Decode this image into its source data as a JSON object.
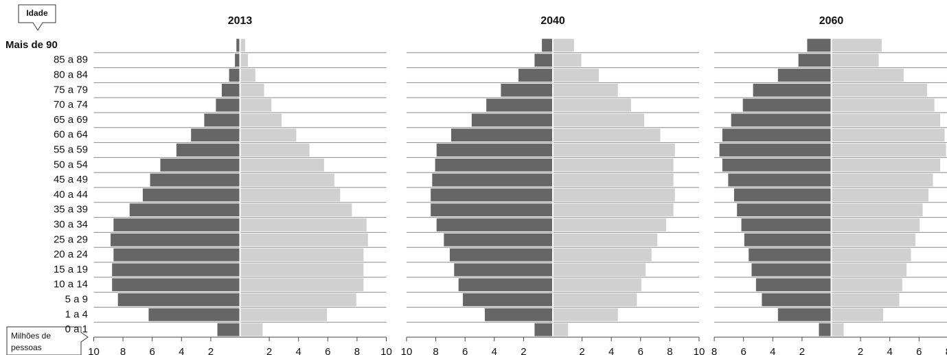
{
  "chart_data": [
    {
      "type": "pyramid",
      "title": "2013",
      "ylabel": "Idade",
      "xlabel": [
        "Milhões de",
        "pessoas"
      ],
      "categories": [
        "Mais de 90",
        "85 a 89",
        "80 a 84",
        "75 a 79",
        "70 a 74",
        "65 a 69",
        "60 a 64",
        "55 a 59",
        "50 a 54",
        "45 a 49",
        "40 a 44",
        "35 a 39",
        "30 a 34",
        "25 a 29",
        "20 a 24",
        "15 a 19",
        "10 a 14",
        "5 a 9",
        "1 a 4",
        "0 a 1"
      ],
      "series": [
        {
          "color": "#666666",
          "side": "left",
          "values": [
            0.2,
            0.3,
            0.7,
            1.2,
            1.6,
            2.4,
            3.3,
            4.3,
            5.4,
            6.1,
            6.6,
            7.5,
            8.6,
            8.8,
            8.6,
            8.7,
            8.7,
            8.3,
            6.2,
            1.5
          ]
        },
        {
          "color": "#d0d0d0",
          "side": "right",
          "values": [
            0.3,
            0.5,
            1.0,
            1.6,
            2.1,
            2.8,
            3.8,
            4.7,
            5.7,
            6.4,
            6.8,
            7.6,
            8.6,
            8.7,
            8.4,
            8.4,
            8.4,
            7.9,
            5.9,
            1.5
          ]
        }
      ],
      "xlim": [
        -10,
        10
      ],
      "xticks": [
        {
          "value": -10,
          "label": "10"
        },
        {
          "value": -8,
          "label": "8"
        },
        {
          "value": -6,
          "label": "6"
        },
        {
          "value": -4,
          "label": "4"
        },
        {
          "value": -2,
          "label": "2"
        },
        2,
        4,
        6,
        8,
        10
      ]
    },
    {
      "type": "pyramid",
      "title": "2040",
      "series": [
        {
          "color": "#666666",
          "side": "left",
          "values": [
            0.7,
            1.2,
            2.3,
            3.5,
            4.5,
            5.5,
            6.9,
            7.9,
            8.0,
            8.2,
            8.3,
            8.3,
            7.9,
            7.4,
            7.0,
            6.7,
            6.4,
            6.1,
            4.6,
            1.2
          ]
        },
        {
          "color": "#d0d0d0",
          "side": "right",
          "values": [
            1.4,
            1.9,
            3.1,
            4.4,
            5.3,
            6.2,
            7.3,
            8.3,
            8.2,
            8.2,
            8.3,
            8.2,
            7.7,
            7.1,
            6.7,
            6.3,
            6.0,
            5.7,
            4.4,
            1.0
          ]
        }
      ],
      "xlim": [
        -10,
        10
      ],
      "xticks": [
        {
          "value": -10,
          "label": "10"
        },
        {
          "value": -8,
          "label": "8"
        },
        {
          "value": -6,
          "label": "6"
        },
        {
          "value": -4,
          "label": "4"
        },
        {
          "value": -2,
          "label": "2"
        },
        2,
        4,
        6,
        8,
        10
      ]
    },
    {
      "type": "pyramid",
      "title": "2060",
      "series": [
        {
          "color": "#666666",
          "side": "left",
          "values": [
            1.6,
            2.2,
            3.6,
            5.3,
            6.0,
            6.8,
            7.4,
            7.6,
            7.4,
            7.0,
            6.6,
            6.4,
            6.1,
            5.9,
            5.6,
            5.4,
            5.1,
            4.7,
            3.6,
            0.8
          ]
        },
        {
          "color": "#d0d0d0",
          "side": "right",
          "values": [
            3.4,
            3.2,
            4.9,
            6.5,
            7.0,
            7.4,
            7.7,
            7.8,
            7.4,
            6.9,
            6.6,
            6.2,
            6.0,
            5.7,
            5.4,
            5.1,
            4.8,
            4.6,
            3.5,
            0.8
          ]
        }
      ],
      "xlim": [
        -8,
        8
      ],
      "xticks": [
        {
          "value": -8,
          "label": "8"
        },
        {
          "value": -6,
          "label": "6"
        },
        {
          "value": -4,
          "label": "4"
        },
        {
          "value": -2,
          "label": "2"
        },
        2,
        4,
        6,
        8
      ]
    }
  ]
}
